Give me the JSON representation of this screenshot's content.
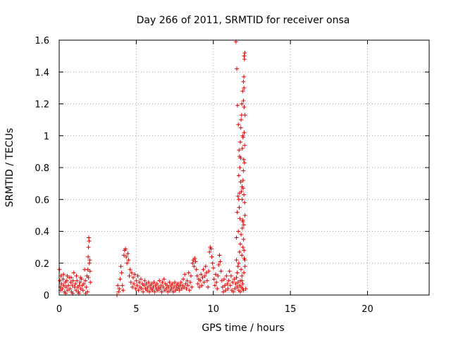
{
  "chart_data": {
    "type": "scatter",
    "title": "Day 266 of 2011, SRMTID for receiver onsa",
    "xlabel": "GPS time / hours",
    "ylabel": "SRMTID / TECUs",
    "xlim": [
      0,
      24
    ],
    "ylim": [
      0,
      1.6
    ],
    "xticks": [
      0,
      5,
      10,
      15,
      20
    ],
    "xtick_labels": [
      "0",
      "5",
      "10",
      "15",
      "20"
    ],
    "yticks": [
      0,
      0.2,
      0.4,
      0.6,
      0.8,
      1,
      1.2,
      1.4,
      1.6
    ],
    "ytick_labels": [
      "0",
      "0.2",
      "0.4",
      "0.6",
      "0.8",
      "1",
      "1.2",
      "1.4",
      "1.6"
    ],
    "grid": true,
    "marker": "plus",
    "series": [
      {
        "name": "SRMTID",
        "color": "#e00000",
        "points": [
          [
            0.02,
            0.16
          ],
          [
            0.05,
            0.09
          ],
          [
            0.08,
            0.05
          ],
          [
            0.1,
            0.03
          ],
          [
            0.15,
            0.07
          ],
          [
            0.2,
            0.04
          ],
          [
            0.25,
            0.1
          ],
          [
            0.3,
            0.06
          ],
          [
            0.35,
            0.02
          ],
          [
            0.4,
            0.08
          ],
          [
            0.45,
            0.05
          ],
          [
            0.5,
            0.09
          ],
          [
            0.55,
            0.03
          ],
          [
            0.6,
            0.06
          ],
          [
            0.65,
            0.11
          ],
          [
            0.7,
            0.04
          ],
          [
            0.75,
            0.08
          ],
          [
            0.8,
            0.02
          ],
          [
            0.85,
            0.06
          ],
          [
            0.9,
            0.09
          ],
          [
            0.95,
            0.14
          ],
          [
            1.0,
            0.05
          ],
          [
            1.05,
            0.07
          ],
          [
            1.1,
            0.03
          ],
          [
            1.15,
            0.09
          ],
          [
            1.2,
            0.05
          ],
          [
            1.25,
            0.02
          ],
          [
            1.3,
            0.06
          ],
          [
            1.35,
            0.08
          ],
          [
            1.4,
            0.04
          ],
          [
            1.45,
            0.1
          ],
          [
            1.5,
            0.06
          ],
          [
            1.55,
            0.03
          ],
          [
            1.6,
            0.07
          ],
          [
            1.65,
            0.16
          ],
          [
            1.7,
            0.09
          ],
          [
            1.75,
            0.05
          ],
          [
            1.8,
            0.12
          ],
          [
            1.83,
            0.02
          ],
          [
            1.86,
            0.16
          ],
          [
            1.88,
            0.24
          ],
          [
            1.9,
            0.3
          ],
          [
            1.92,
            0.36
          ],
          [
            1.94,
            0.34
          ],
          [
            1.96,
            0.2
          ],
          [
            1.98,
            0.22
          ],
          [
            2.0,
            0.15
          ],
          [
            2.02,
            0.08
          ],
          [
            1.9,
            0.11
          ],
          [
            0.12,
            0.12
          ],
          [
            0.28,
            0.13
          ],
          [
            0.52,
            0.12
          ],
          [
            0.78,
            0.11
          ],
          [
            1.12,
            0.12
          ],
          [
            1.38,
            0.11
          ],
          [
            0.42,
            0.01
          ],
          [
            0.88,
            0.01
          ],
          [
            1.28,
            0.01
          ],
          [
            1.72,
            0.01
          ],
          [
            3.75,
            0.0
          ],
          [
            3.8,
            0.06
          ],
          [
            3.85,
            0.02
          ],
          [
            3.9,
            0.04
          ],
          [
            3.95,
            0.1
          ],
          [
            4.0,
            0.18
          ],
          [
            4.05,
            0.14
          ],
          [
            4.1,
            0.06
          ],
          [
            4.15,
            0.03
          ],
          [
            4.2,
            0.25
          ],
          [
            4.25,
            0.28
          ],
          [
            4.3,
            0.29
          ],
          [
            4.35,
            0.24
          ],
          [
            4.4,
            0.2
          ],
          [
            4.45,
            0.26
          ],
          [
            4.5,
            0.22
          ],
          [
            4.55,
            0.12
          ],
          [
            4.6,
            0.16
          ],
          [
            4.65,
            0.08
          ],
          [
            4.7,
            0.14
          ],
          [
            4.75,
            0.05
          ],
          [
            4.8,
            0.11
          ],
          [
            4.85,
            0.07
          ],
          [
            4.9,
            0.13
          ],
          [
            4.95,
            0.04
          ],
          [
            5.0,
            0.09
          ],
          [
            5.05,
            0.06
          ],
          [
            5.1,
            0.12
          ],
          [
            5.15,
            0.03
          ],
          [
            5.2,
            0.08
          ],
          [
            5.25,
            0.05
          ],
          [
            5.3,
            0.1
          ],
          [
            5.35,
            0.04
          ],
          [
            5.4,
            0.07
          ],
          [
            5.45,
            0.02
          ],
          [
            5.5,
            0.06
          ],
          [
            5.55,
            0.09
          ],
          [
            5.6,
            0.04
          ],
          [
            5.65,
            0.07
          ],
          [
            5.7,
            0.03
          ],
          [
            5.75,
            0.05
          ],
          [
            5.8,
            0.08
          ],
          [
            5.85,
            0.02
          ],
          [
            5.9,
            0.06
          ],
          [
            5.95,
            0.04
          ],
          [
            6.0,
            0.07
          ],
          [
            6.05,
            0.03
          ],
          [
            6.1,
            0.05
          ],
          [
            6.15,
            0.08
          ],
          [
            6.2,
            0.02
          ],
          [
            6.25,
            0.06
          ],
          [
            6.3,
            0.04
          ],
          [
            6.35,
            0.07
          ],
          [
            6.4,
            0.03
          ],
          [
            6.45,
            0.05
          ],
          [
            6.5,
            0.09
          ],
          [
            6.55,
            0.04
          ],
          [
            6.6,
            0.06
          ],
          [
            6.65,
            0.02
          ],
          [
            6.7,
            0.08
          ],
          [
            6.75,
            0.05
          ],
          [
            6.8,
            0.1
          ],
          [
            6.85,
            0.03
          ],
          [
            6.9,
            0.07
          ],
          [
            6.95,
            0.04
          ],
          [
            7.0,
            0.06
          ],
          [
            7.05,
            0.02
          ],
          [
            7.1,
            0.05
          ],
          [
            7.15,
            0.08
          ],
          [
            7.2,
            0.03
          ],
          [
            7.25,
            0.06
          ],
          [
            7.3,
            0.04
          ],
          [
            7.35,
            0.07
          ],
          [
            7.4,
            0.02
          ],
          [
            7.45,
            0.05
          ],
          [
            7.5,
            0.08
          ],
          [
            7.55,
            0.03
          ],
          [
            7.6,
            0.06
          ],
          [
            7.65,
            0.04
          ],
          [
            7.7,
            0.07
          ],
          [
            7.75,
            0.05
          ],
          [
            7.8,
            0.03
          ],
          [
            7.85,
            0.06
          ],
          [
            7.9,
            0.08
          ],
          [
            7.95,
            0.04
          ],
          [
            8.0,
            0.06
          ],
          [
            8.05,
            0.1
          ],
          [
            8.1,
            0.05
          ],
          [
            8.15,
            0.13
          ],
          [
            8.2,
            0.07
          ],
          [
            8.25,
            0.04
          ],
          [
            8.3,
            0.09
          ],
          [
            8.35,
            0.06
          ],
          [
            8.4,
            0.14
          ],
          [
            8.45,
            0.03
          ],
          [
            8.5,
            0.08
          ],
          [
            8.55,
            0.12
          ],
          [
            8.6,
            0.05
          ],
          [
            8.65,
            0.2
          ],
          [
            8.7,
            0.22
          ],
          [
            8.75,
            0.18
          ],
          [
            8.8,
            0.23
          ],
          [
            8.85,
            0.21
          ],
          [
            8.9,
            0.16
          ],
          [
            8.95,
            0.12
          ],
          [
            9.0,
            0.07
          ],
          [
            9.05,
            0.1
          ],
          [
            9.1,
            0.05
          ],
          [
            9.15,
            0.09
          ],
          [
            9.2,
            0.13
          ],
          [
            9.25,
            0.06
          ],
          [
            9.3,
            0.11
          ],
          [
            9.35,
            0.16
          ],
          [
            9.4,
            0.08
          ],
          [
            9.45,
            0.12
          ],
          [
            9.5,
            0.18
          ],
          [
            9.55,
            0.14
          ],
          [
            9.6,
            0.09
          ],
          [
            9.65,
            0.05
          ],
          [
            9.7,
            0.15
          ],
          [
            9.75,
            0.27
          ],
          [
            9.8,
            0.3
          ],
          [
            9.85,
            0.29
          ],
          [
            9.9,
            0.24
          ],
          [
            9.95,
            0.2
          ],
          [
            10.0,
            0.17
          ],
          [
            10.05,
            0.1
          ],
          [
            10.1,
            0.06
          ],
          [
            10.15,
            0.13
          ],
          [
            10.2,
            0.08
          ],
          [
            10.25,
            0.04
          ],
          [
            10.3,
            0.12
          ],
          [
            10.35,
            0.19
          ],
          [
            10.4,
            0.25
          ],
          [
            10.45,
            0.21
          ],
          [
            10.5,
            0.15
          ],
          [
            10.55,
            0.09
          ],
          [
            10.6,
            0.05
          ],
          [
            10.65,
            0.02
          ],
          [
            10.7,
            0.1
          ],
          [
            10.75,
            0.06
          ],
          [
            10.8,
            0.03
          ],
          [
            10.85,
            0.12
          ],
          [
            10.9,
            0.07
          ],
          [
            10.95,
            0.04
          ],
          [
            11.0,
            0.09
          ],
          [
            11.05,
            0.15
          ],
          [
            11.1,
            0.06
          ],
          [
            11.15,
            0.12
          ],
          [
            11.2,
            0.03
          ],
          [
            11.25,
            0.08
          ],
          [
            11.3,
            0.02
          ],
          [
            11.35,
            0.1
          ],
          [
            11.4,
            0.04
          ],
          [
            11.45,
            0.07
          ],
          [
            11.5,
            0.11
          ],
          [
            11.55,
            0.05
          ],
          [
            11.6,
            0.08
          ],
          [
            11.65,
            0.03
          ],
          [
            11.7,
            0.06
          ],
          [
            11.75,
            0.02
          ],
          [
            11.8,
            0.05
          ],
          [
            11.85,
            0.09
          ],
          [
            11.9,
            0.04
          ],
          [
            11.95,
            0.03
          ],
          [
            12.0,
            0.23
          ],
          [
            12.05,
            0.18
          ],
          [
            12.1,
            0.04
          ],
          [
            11.47,
            1.59
          ],
          [
            11.52,
            1.42
          ],
          [
            11.57,
            1.19
          ],
          [
            11.62,
            1.07
          ],
          [
            11.67,
            0.91
          ],
          [
            11.72,
            0.8
          ],
          [
            11.77,
            0.71
          ],
          [
            11.82,
            0.65
          ],
          [
            11.87,
            0.6
          ],
          [
            11.92,
            0.46
          ],
          [
            11.97,
            0.44
          ],
          [
            11.5,
            0.36
          ],
          [
            11.55,
            0.52
          ],
          [
            11.6,
            0.62
          ],
          [
            11.65,
            0.75
          ],
          [
            11.7,
            0.87
          ],
          [
            11.75,
            0.96
          ],
          [
            11.8,
            1.1
          ],
          [
            11.85,
            1.2
          ],
          [
            11.9,
            1.28
          ],
          [
            11.95,
            1.34
          ],
          [
            12.0,
            1.5
          ],
          [
            12.02,
            1.48
          ],
          [
            12.04,
            1.52
          ],
          [
            11.98,
            1.37
          ],
          [
            12.0,
            1.18
          ],
          [
            11.95,
            1.22
          ],
          [
            11.9,
            1.0
          ],
          [
            11.97,
            0.85
          ],
          [
            12.02,
            0.83
          ],
          [
            11.93,
            0.67
          ],
          [
            11.98,
            0.63
          ],
          [
            12.03,
            0.58
          ],
          [
            12.05,
            0.5
          ],
          [
            11.9,
            0.47
          ],
          [
            11.88,
            0.42
          ],
          [
            11.8,
            0.38
          ],
          [
            11.75,
            0.32
          ],
          [
            11.7,
            0.27
          ],
          [
            11.8,
            0.16
          ],
          [
            11.65,
            0.2
          ],
          [
            11.85,
            0.25
          ],
          [
            11.92,
            0.3
          ],
          [
            11.96,
            0.35
          ],
          [
            11.99,
            0.28
          ],
          [
            12.04,
            0.22
          ],
          [
            11.98,
            0.14
          ],
          [
            11.9,
            0.07
          ],
          [
            11.85,
            0.12
          ],
          [
            11.75,
            0.09
          ],
          [
            11.6,
            0.18
          ],
          [
            11.55,
            0.14
          ],
          [
            11.5,
            0.22
          ],
          [
            11.62,
            0.4
          ],
          [
            11.68,
            0.55
          ],
          [
            11.72,
            0.48
          ],
          [
            11.78,
            1.05
          ],
          [
            11.83,
            1.13
          ],
          [
            11.88,
            0.92
          ],
          [
            11.93,
            0.99
          ],
          [
            12.0,
            1.02
          ],
          [
            11.95,
            0.78
          ],
          [
            11.92,
            0.72
          ],
          [
            11.86,
            0.68
          ],
          [
            11.7,
            0.64
          ],
          [
            11.65,
            0.6
          ],
          [
            11.77,
            0.86
          ],
          [
            12.03,
            0.94
          ],
          [
            12.05,
            1.13
          ],
          [
            11.99,
            1.3
          ]
        ]
      }
    ]
  }
}
